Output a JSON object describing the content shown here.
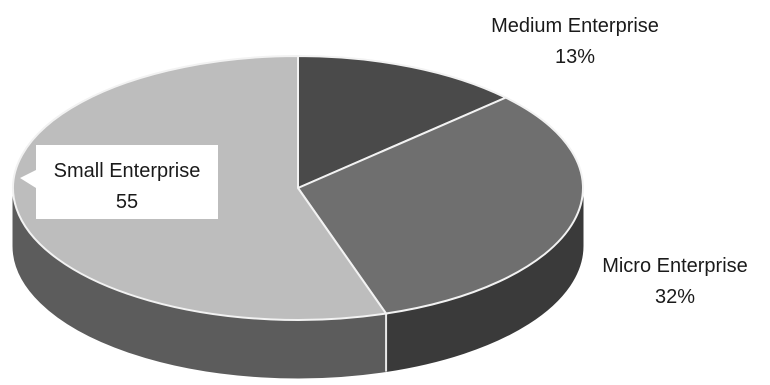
{
  "chart_data": {
    "type": "pie",
    "style": "3d",
    "title": "",
    "categories": [
      "Medium Enterprise",
      "Micro Enterprise",
      "Small Enterprise"
    ],
    "values": [
      13,
      32,
      55
    ],
    "labels": [
      {
        "name": "Medium Enterprise",
        "value": "13%"
      },
      {
        "name": "Micro Enterprise",
        "value": "32%"
      },
      {
        "name": "Small Enterprise",
        "value": "55"
      }
    ],
    "colors": [
      "#4a4a4a",
      "#6f6f6f",
      "#bdbdbd"
    ],
    "side_colors": [
      "#2a2a2a",
      "#3a3a3a",
      "#5c5c5c"
    ],
    "legend": "none"
  }
}
